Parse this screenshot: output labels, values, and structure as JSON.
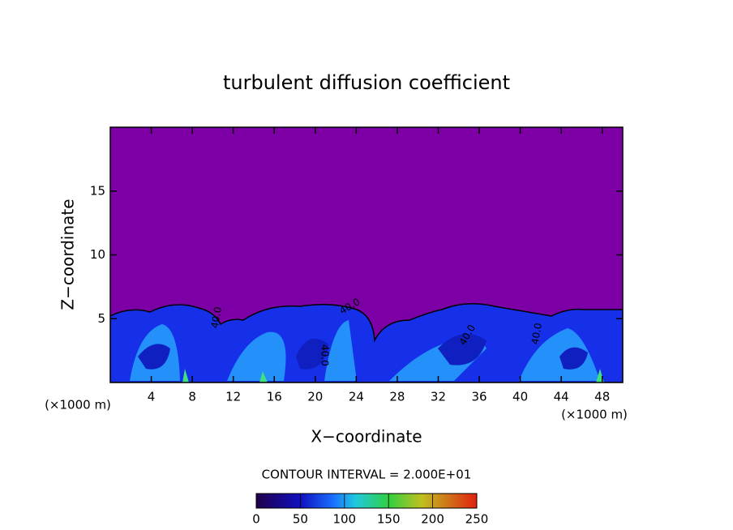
{
  "chart_data": {
    "type": "contour",
    "title": "turbulent diffusion coefficient",
    "xlabel": "X−coordinate",
    "ylabel": "Z−coordinate",
    "x_unit_left": "(×1000 m)",
    "x_unit_right": "(×1000 m)",
    "contour_interval": "CONTOUR INTERVAL = 2.000E+01",
    "contour_labels": [
      "40.0",
      "40.0",
      "40.0",
      "40.0",
      "40.0"
    ],
    "xlim": [
      0,
      50
    ],
    "xticks": [
      4,
      8,
      12,
      16,
      20,
      24,
      28,
      32,
      36,
      40,
      44,
      48
    ],
    "ylim": [
      0,
      20
    ],
    "yticks": [
      5,
      10,
      15
    ],
    "colorbar_lim": [
      0,
      250
    ],
    "colorbar_ticks": [
      0,
      50,
      100,
      150,
      200,
      250
    ],
    "background_color": "#7c00a6"
  }
}
